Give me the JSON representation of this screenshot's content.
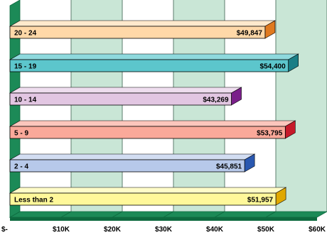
{
  "chart_data": {
    "type": "bar",
    "orientation": "horizontal",
    "style": "3d",
    "title": "",
    "xlabel": "",
    "ylabel": "",
    "xlim": [
      0,
      60000
    ],
    "x_ticks": [
      0,
      10000,
      20000,
      30000,
      40000,
      50000,
      60000
    ],
    "x_tick_labels": [
      "$-",
      "$10K",
      "$20K",
      "$30K",
      "$40K",
      "$50K",
      "$60K"
    ],
    "grid": true,
    "legend": "none",
    "categories": [
      "20 - 24",
      "15 - 19",
      "10 - 14",
      "5 - 9",
      "2 - 4",
      "Less than 2"
    ],
    "values": [
      49847,
      54400,
      43269,
      53795,
      45851,
      51957
    ],
    "value_labels": [
      "$49,847",
      "$54,400",
      "$43,269",
      "$53,795",
      "$45,851",
      "$51,957"
    ],
    "colors": {
      "bars": [
        {
          "face": "#FFD8A8",
          "top": "#FFE9CC",
          "side": "#E07A20"
        },
        {
          "face": "#5CC6CC",
          "top": "#8ED9DD",
          "side": "#1A7E86"
        },
        {
          "face": "#E2C6E2",
          "top": "#EEDDEE",
          "side": "#7A1F8A"
        },
        {
          "face": "#FAA99A",
          "top": "#FCC6BC",
          "side": "#C61A2A"
        },
        {
          "face": "#B7C9EA",
          "top": "#D2DDF2",
          "side": "#2A58B0"
        },
        {
          "face": "#FFF89A",
          "top": "#FFFCC8",
          "side": "#E0A800"
        }
      ],
      "wall_band_light": "#FFFFFF",
      "wall_band_green": "#C9E6D6",
      "grid_line": "#5D7E6D",
      "axis_green": "#1C8A57",
      "axis_green_dark": "#0E6A3F",
      "text": "#000000"
    }
  }
}
